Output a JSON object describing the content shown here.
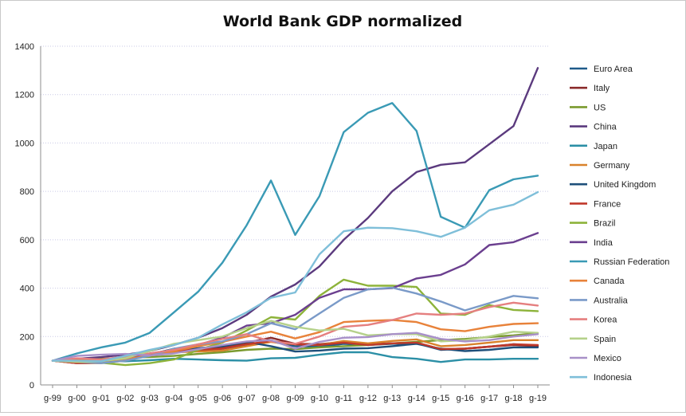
{
  "chart_data": {
    "type": "line",
    "title": "World Bank GDP normalized",
    "xlabel": "",
    "ylabel": "",
    "ylim": [
      0,
      1400
    ],
    "yticks": [
      0,
      200,
      400,
      600,
      800,
      1000,
      1200,
      1400
    ],
    "grid": "horizontal",
    "legend_placement": "right",
    "categories": [
      "g-99",
      "g-00",
      "g-01",
      "g-02",
      "g-03",
      "g-04",
      "g-05",
      "g-06",
      "g-07",
      "g-08",
      "g-09",
      "g-10",
      "g-11",
      "g-12",
      "g-13",
      "g-14",
      "g-15",
      "g-16",
      "g-17",
      "g-18",
      "g-19"
    ],
    "series": [
      {
        "name": "Euro Area",
        "color": "#1f5a8a",
        "values": [
          100,
          90,
          92,
          105,
          125,
          140,
          145,
          150,
          165,
          180,
          160,
          158,
          170,
          165,
          170,
          172,
          145,
          150,
          158,
          168,
          162
        ]
      },
      {
        "name": "Italy",
        "color": "#8b2b2b",
        "values": [
          100,
          92,
          94,
          105,
          130,
          145,
          148,
          155,
          175,
          195,
          170,
          168,
          178,
          170,
          172,
          175,
          148,
          150,
          158,
          165,
          160
        ]
      },
      {
        "name": "US",
        "color": "#7a9a2e",
        "values": [
          100,
          105,
          108,
          112,
          115,
          120,
          128,
          135,
          145,
          150,
          148,
          155,
          160,
          165,
          172,
          178,
          185,
          190,
          198,
          205,
          214
        ]
      },
      {
        "name": "China",
        "color": "#5b3a7e",
        "values": [
          100,
          108,
          115,
          125,
          140,
          165,
          195,
          235,
          290,
          365,
          415,
          490,
          600,
          690,
          800,
          880,
          910,
          920,
          995,
          1070,
          1310
        ]
      },
      {
        "name": "Japan",
        "color": "#2b8fa6",
        "values": [
          100,
          105,
          100,
          98,
          102,
          108,
          105,
          102,
          100,
          110,
          112,
          125,
          135,
          135,
          115,
          108,
          95,
          105,
          105,
          108,
          108
        ]
      },
      {
        "name": "Germany",
        "color": "#d9822b",
        "values": [
          100,
          90,
          90,
          100,
          122,
          135,
          138,
          142,
          160,
          178,
          168,
          165,
          182,
          172,
          182,
          188,
          160,
          165,
          175,
          185,
          185
        ]
      },
      {
        "name": "United Kingdom",
        "color": "#1e4f7a",
        "values": [
          100,
          100,
          98,
          108,
          125,
          150,
          152,
          160,
          178,
          160,
          138,
          142,
          150,
          152,
          160,
          170,
          150,
          140,
          145,
          155,
          155
        ]
      },
      {
        "name": "France",
        "color": "#c0392b",
        "values": [
          100,
          90,
          92,
          105,
          128,
          142,
          145,
          150,
          168,
          182,
          168,
          165,
          175,
          165,
          172,
          175,
          148,
          150,
          158,
          168,
          165
        ]
      },
      {
        "name": "Brazil",
        "color": "#8db33a",
        "values": [
          100,
          108,
          92,
          82,
          90,
          105,
          145,
          175,
          225,
          280,
          270,
          368,
          435,
          410,
          410,
          405,
          295,
          290,
          330,
          310,
          305
        ]
      },
      {
        "name": "India",
        "color": "#6b3f8f",
        "values": [
          100,
          102,
          104,
          108,
          125,
          145,
          165,
          195,
          245,
          255,
          290,
          360,
          395,
          395,
          400,
          440,
          455,
          498,
          578,
          590,
          628
        ]
      },
      {
        "name": "Russian Federation",
        "color": "#3a9ab5",
        "values": [
          100,
          130,
          155,
          175,
          215,
          300,
          385,
          505,
          660,
          845,
          620,
          780,
          1045,
          1125,
          1165,
          1050,
          695,
          650,
          805,
          850,
          865
        ]
      },
      {
        "name": "Canada",
        "color": "#e8823a",
        "values": [
          100,
          102,
          100,
          106,
          122,
          140,
          160,
          178,
          200,
          220,
          192,
          218,
          260,
          265,
          268,
          260,
          230,
          222,
          240,
          252,
          255
        ]
      },
      {
        "name": "Australia",
        "color": "#7a9ac8",
        "values": [
          100,
          95,
          90,
          100,
          120,
          150,
          168,
          180,
          210,
          255,
          230,
          295,
          360,
          395,
          402,
          378,
          345,
          308,
          338,
          368,
          358
        ]
      },
      {
        "name": "Korea",
        "color": "#e57f7f",
        "values": [
          100,
          110,
          105,
          118,
          130,
          145,
          168,
          190,
          210,
          180,
          170,
          200,
          240,
          248,
          268,
          295,
          290,
          295,
          322,
          340,
          328
        ]
      },
      {
        "name": "Spain",
        "color": "#b5d18a",
        "values": [
          100,
          95,
          98,
          110,
          140,
          170,
          185,
          200,
          235,
          265,
          240,
          225,
          232,
          205,
          210,
          210,
          180,
          185,
          200,
          220,
          215
        ]
      },
      {
        "name": "Mexico",
        "color": "#a890c8",
        "values": [
          100,
          120,
          125,
          128,
          122,
          130,
          148,
          165,
          180,
          185,
          150,
          178,
          195,
          198,
          210,
          215,
          190,
          180,
          185,
          200,
          210
        ]
      },
      {
        "name": "Indonesia",
        "color": "#7fbfd9",
        "values": [
          100,
          100,
          98,
          120,
          145,
          165,
          195,
          250,
          300,
          360,
          382,
          540,
          635,
          650,
          648,
          635,
          612,
          650,
          722,
          745,
          797
        ]
      }
    ]
  },
  "legend": {
    "placement": "right"
  }
}
